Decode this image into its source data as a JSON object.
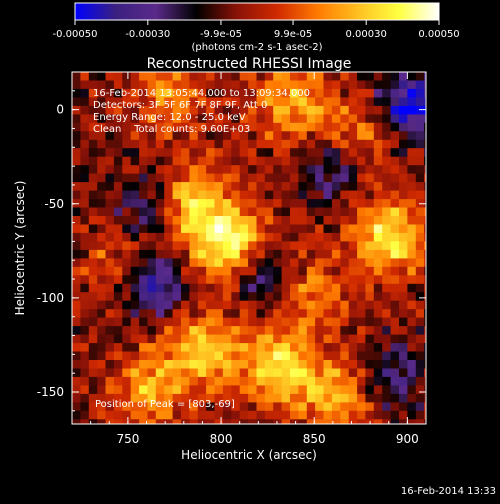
{
  "chart_data": {
    "type": "heatmap",
    "title": "Reconstructed RHESSI Image",
    "xlabel": "Heliocentric X (arcsec)",
    "ylabel": "Heliocentric Y (arcsec)",
    "xlim": [
      720,
      910
    ],
    "ylim": [
      -167,
      20
    ],
    "x_ticks": [
      750,
      800,
      850,
      900
    ],
    "y_ticks": [
      0,
      -50,
      -100,
      -150
    ],
    "colorbar": {
      "range": [
        -0.0005,
        0.0005
      ],
      "ticks": [
        -0.0005,
        -0.0003,
        -9.9e-05,
        9.9e-05,
        0.0003,
        0.0005
      ],
      "tick_labels": [
        "-0.00050",
        "-0.00030",
        "-9.9e-05",
        "9.9e-05",
        "0.00030",
        "0.00050"
      ],
      "unit_label": "(photons cm-2 s-1 asec-2)"
    },
    "colormap": [
      "#0000ff",
      "#3a2080",
      "#5a2a8a",
      "#000000",
      "#8a1208",
      "#d02a00",
      "#ff7a00",
      "#ffc020",
      "#ffff40",
      "#ffffff"
    ],
    "info_lines": [
      "16-Feb-2014 13:05:44.000 to 13:09:34.000",
      "Detectors: 3F 5F 6F 7F 8F 9F, Att 0",
      "Energy Range: 12.0 - 25.0 keV",
      "Clean    Total counts: 9.60E+03"
    ],
    "peak_label": "Position of Peak = [803,-69]",
    "peak": [
      803,
      -69
    ],
    "sources": [
      {
        "x": 803,
        "y": -69,
        "amp": 1.0
      },
      {
        "x": 782,
        "y": -48,
        "amp": 0.75
      },
      {
        "x": 888,
        "y": -65,
        "amp": 0.85
      },
      {
        "x": 830,
        "y": -135,
        "amp": 0.8
      },
      {
        "x": 790,
        "y": -125,
        "amp": 0.7
      },
      {
        "x": 760,
        "y": -145,
        "amp": 0.6
      },
      {
        "x": 860,
        "y": -150,
        "amp": 0.55
      },
      {
        "x": 845,
        "y": -95,
        "amp": 0.45
      },
      {
        "x": 835,
        "y": 5,
        "amp": 0.6
      },
      {
        "x": 770,
        "y": 10,
        "amp": 0.45
      },
      {
        "x": 745,
        "y": -80,
        "amp": 0.4
      },
      {
        "x": 870,
        "y": -10,
        "amp": 0.4
      }
    ],
    "negative_regions": [
      {
        "x": 760,
        "y": -90,
        "amp": 0.8
      },
      {
        "x": 900,
        "y": 5,
        "amp": 0.9
      },
      {
        "x": 820,
        "y": -85,
        "amp": 0.6
      },
      {
        "x": 760,
        "y": -50,
        "amp": 0.55
      },
      {
        "x": 890,
        "y": -140,
        "amp": 0.5
      },
      {
        "x": 855,
        "y": -30,
        "amp": 0.45
      }
    ]
  },
  "footer_timestamp": "16-Feb-2014 13:33"
}
